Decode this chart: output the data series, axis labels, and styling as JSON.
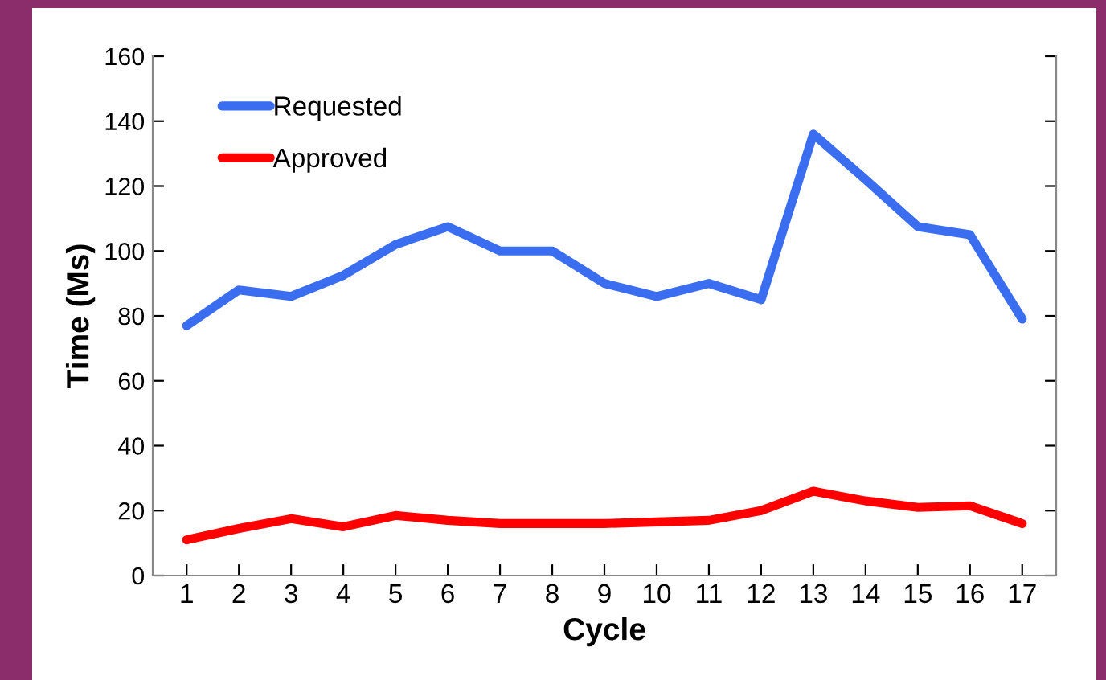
{
  "chart_data": {
    "type": "line",
    "xlabel": "Cycle",
    "ylabel": "Time (Ms)",
    "categories": [
      "1",
      "2",
      "3",
      "4",
      "5",
      "6",
      "7",
      "8",
      "9",
      "10",
      "11",
      "12",
      "13",
      "14",
      "15",
      "16",
      "17"
    ],
    "series": [
      {
        "name": "Requested",
        "color": "#3a6df0",
        "values": [
          77,
          88,
          86,
          92.5,
          102,
          107.5,
          100,
          100,
          90,
          86,
          90,
          85,
          136,
          122,
          107.5,
          105,
          79
        ]
      },
      {
        "name": "Approved",
        "color": "#ff0000",
        "values": [
          11,
          14.5,
          17.5,
          15,
          18.5,
          17,
          16,
          16,
          16,
          16.5,
          17,
          20,
          26,
          23,
          21,
          21.5,
          16
        ]
      }
    ],
    "ylim": [
      0,
      160
    ],
    "yticks": [
      0,
      20,
      40,
      60,
      80,
      100,
      120,
      140,
      160
    ],
    "grid": false,
    "legend": "top left",
    "marker": "none",
    "line_style": "solid"
  }
}
